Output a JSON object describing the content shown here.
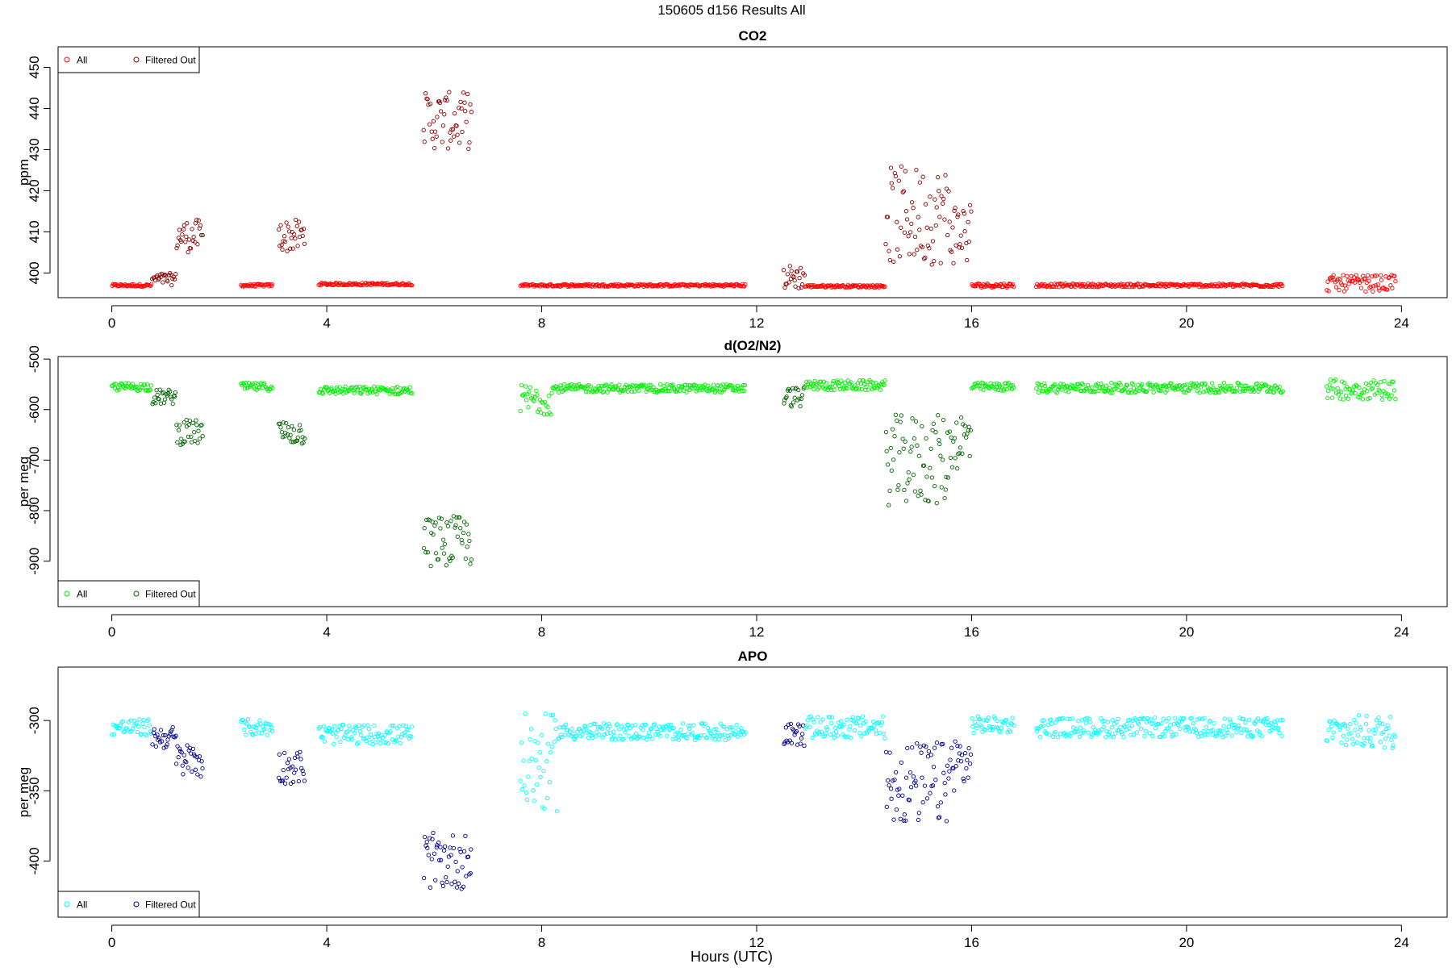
{
  "figure": {
    "title": "150605   d156   Results All",
    "xlabel": "Hours (UTC)"
  },
  "chart_data": [
    {
      "type": "scatter",
      "title": "CO2",
      "ylabel": "ppm",
      "xlabel": "",
      "xlim": [
        -1,
        24.85
      ],
      "ylim": [
        394,
        455
      ],
      "xticks": [
        0,
        4,
        8,
        12,
        16,
        20,
        24
      ],
      "yticks": [
        400,
        410,
        420,
        430,
        440,
        450
      ],
      "grid": false,
      "legend": {
        "position": "top-left",
        "entries": [
          "All",
          "Filtered Out"
        ]
      },
      "colors": {
        "all": "#ff0000",
        "filtered": "#8b0000"
      },
      "segments": [
        {
          "x": [
            0.0,
            0.75
          ],
          "y": 397,
          "amp": 0.3,
          "filtered": false
        },
        {
          "x": [
            0.75,
            1.2
          ],
          "y": 398.5,
          "amp": 1.5,
          "filtered": true
        },
        {
          "x": [
            1.2,
            1.7
          ],
          "y": 409,
          "amp": 4,
          "filtered": true
        },
        {
          "x": [
            2.4,
            3.0
          ],
          "y": 397,
          "amp": 0.3,
          "filtered": false
        },
        {
          "x": [
            3.1,
            3.6
          ],
          "y": 409,
          "amp": 4,
          "filtered": true
        },
        {
          "x": [
            3.85,
            5.6
          ],
          "y": 397.3,
          "amp": 0.3,
          "filtered": false
        },
        {
          "x": [
            5.8,
            6.7
          ],
          "y": 437,
          "amp": 7,
          "filtered": true
        },
        {
          "x": [
            7.6,
            11.8
          ],
          "y": 397,
          "amp": 0.3,
          "filtered": false
        },
        {
          "x": [
            12.5,
            12.9
          ],
          "y": 399,
          "amp": 3,
          "filtered": true
        },
        {
          "x": [
            12.9,
            14.4
          ],
          "y": 396.8,
          "amp": 0.3,
          "filtered": false
        },
        {
          "x": [
            14.4,
            15.6
          ],
          "y": 414,
          "amp": 12,
          "filtered": true
        },
        {
          "x": [
            15.6,
            16.0
          ],
          "y": 410,
          "amp": 8,
          "filtered": true
        },
        {
          "x": [
            16.0,
            16.8
          ],
          "y": 397,
          "amp": 0.5,
          "filtered": false
        },
        {
          "x": [
            17.2,
            21.8
          ],
          "y": 397,
          "amp": 0.4,
          "filtered": false
        },
        {
          "x": [
            22.6,
            23.9
          ],
          "y": 397.5,
          "amp": 2,
          "filtered": false
        }
      ]
    },
    {
      "type": "scatter",
      "title": "d(O2/N2)",
      "ylabel": "per meg",
      "xlabel": "",
      "xlim": [
        -1,
        24.85
      ],
      "ylim": [
        -990,
        -495
      ],
      "xticks": [
        0,
        4,
        8,
        12,
        16,
        20,
        24
      ],
      "yticks": [
        -500,
        -600,
        -700,
        -800,
        -900
      ],
      "grid": false,
      "legend": {
        "position": "bottom-left",
        "entries": [
          "All",
          "Filtered Out"
        ]
      },
      "colors": {
        "all": "#00ee00",
        "filtered": "#006400"
      },
      "segments": [
        {
          "x": [
            0.0,
            0.75
          ],
          "y": -555,
          "amp": 8,
          "filtered": false
        },
        {
          "x": [
            0.75,
            1.2
          ],
          "y": -575,
          "amp": 15,
          "filtered": true
        },
        {
          "x": [
            1.2,
            1.7
          ],
          "y": -645,
          "amp": 25,
          "filtered": true
        },
        {
          "x": [
            2.4,
            3.0
          ],
          "y": -555,
          "amp": 8,
          "filtered": false
        },
        {
          "x": [
            3.1,
            3.6
          ],
          "y": -645,
          "amp": 25,
          "filtered": true
        },
        {
          "x": [
            3.85,
            5.6
          ],
          "y": -562,
          "amp": 8,
          "filtered": false
        },
        {
          "x": [
            5.8,
            6.7
          ],
          "y": -860,
          "amp": 50,
          "filtered": true
        },
        {
          "x": [
            7.6,
            8.2
          ],
          "y": -580,
          "amp": 30,
          "filtered": false
        },
        {
          "x": [
            8.2,
            11.8
          ],
          "y": -558,
          "amp": 8,
          "filtered": false
        },
        {
          "x": [
            12.5,
            12.9
          ],
          "y": -575,
          "amp": 20,
          "filtered": true
        },
        {
          "x": [
            12.9,
            14.4
          ],
          "y": -552,
          "amp": 10,
          "filtered": false
        },
        {
          "x": [
            14.4,
            15.6
          ],
          "y": -700,
          "amp": 90,
          "filtered": true
        },
        {
          "x": [
            15.6,
            16.0
          ],
          "y": -660,
          "amp": 60,
          "filtered": true
        },
        {
          "x": [
            16.0,
            16.8
          ],
          "y": -555,
          "amp": 8,
          "filtered": false
        },
        {
          "x": [
            17.2,
            21.8
          ],
          "y": -557,
          "amp": 10,
          "filtered": false
        },
        {
          "x": [
            22.6,
            23.9
          ],
          "y": -560,
          "amp": 20,
          "filtered": false
        }
      ]
    },
    {
      "type": "scatter",
      "title": "APO",
      "ylabel": "per meg",
      "xlabel": "",
      "xlim": [
        -1,
        24.85
      ],
      "ylim": [
        -440,
        -262
      ],
      "xticks": [
        0,
        4,
        8,
        12,
        16,
        20,
        24
      ],
      "yticks": [
        -300,
        -350,
        -400
      ],
      "grid": false,
      "legend": {
        "position": "bottom-left",
        "entries": [
          "All",
          "Filtered Out"
        ]
      },
      "colors": {
        "all": "#00ffff",
        "filtered": "#00008b"
      },
      "segments": [
        {
          "x": [
            0.0,
            0.75
          ],
          "y": -305,
          "amp": 6,
          "filtered": false
        },
        {
          "x": [
            0.75,
            1.2
          ],
          "y": -312,
          "amp": 8,
          "filtered": true
        },
        {
          "x": [
            1.2,
            1.7
          ],
          "y": -328,
          "amp": 12,
          "filtered": true
        },
        {
          "x": [
            2.4,
            3.0
          ],
          "y": -305,
          "amp": 6,
          "filtered": false
        },
        {
          "x": [
            3.1,
            3.6
          ],
          "y": -333,
          "amp": 12,
          "filtered": true
        },
        {
          "x": [
            3.85,
            5.6
          ],
          "y": -310,
          "amp": 7,
          "filtered": false
        },
        {
          "x": [
            5.8,
            6.7
          ],
          "y": -400,
          "amp": 20,
          "filtered": true
        },
        {
          "x": [
            7.6,
            8.3
          ],
          "y": -330,
          "amp": 35,
          "filtered": false
        },
        {
          "x": [
            8.3,
            11.8
          ],
          "y": -308,
          "amp": 6,
          "filtered": false
        },
        {
          "x": [
            12.5,
            12.9
          ],
          "y": -310,
          "amp": 8,
          "filtered": true
        },
        {
          "x": [
            12.9,
            14.4
          ],
          "y": -305,
          "amp": 8,
          "filtered": false
        },
        {
          "x": [
            14.4,
            15.6
          ],
          "y": -345,
          "amp": 30,
          "filtered": true
        },
        {
          "x": [
            15.6,
            16.0
          ],
          "y": -330,
          "amp": 20,
          "filtered": true
        },
        {
          "x": [
            16.0,
            16.8
          ],
          "y": -303,
          "amp": 6,
          "filtered": false
        },
        {
          "x": [
            17.2,
            21.8
          ],
          "y": -305,
          "amp": 7,
          "filtered": false
        },
        {
          "x": [
            22.6,
            23.9
          ],
          "y": -308,
          "amp": 12,
          "filtered": false
        }
      ]
    }
  ]
}
